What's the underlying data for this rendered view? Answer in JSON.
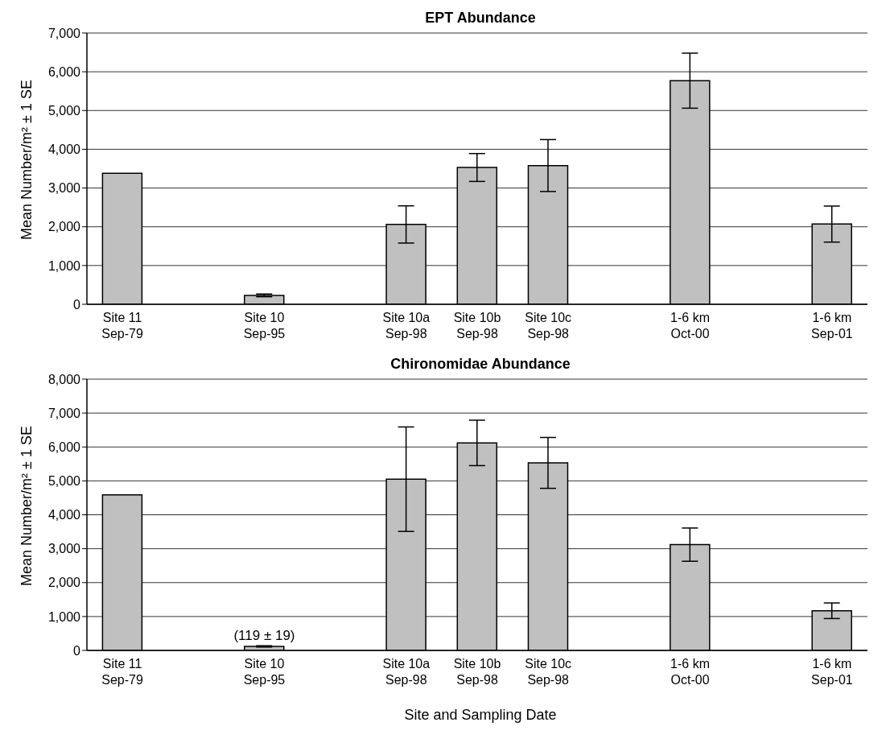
{
  "chart_data": [
    {
      "type": "bar",
      "title": "EPT Abundance",
      "ylabel": "Mean Number/m² ± 1 SE",
      "categories": [
        "Site 11\nSep-79",
        null,
        "Site 10\nSep-95",
        null,
        "Site 10a\nSep-98",
        "Site 10b\nSep-98",
        "Site 10c\nSep-98",
        null,
        "1-6 km\nOct-00",
        null,
        "1-6 km\nSep-01"
      ],
      "values": [
        3380,
        null,
        230,
        null,
        2060,
        3530,
        3580,
        null,
        5770,
        null,
        2070
      ],
      "errors": [
        null,
        null,
        35,
        null,
        480,
        360,
        670,
        null,
        710,
        null,
        465
      ],
      "color": "#c0c0c0",
      "ylim": [
        0,
        7000
      ],
      "yticks": [
        {
          "value": 0,
          "label": "0"
        },
        {
          "value": 1000,
          "label": "1,000"
        },
        {
          "value": 2000,
          "label": "2,000"
        },
        {
          "value": 3000,
          "label": "3,000"
        },
        {
          "value": 4000,
          "label": "4,000"
        },
        {
          "value": 5000,
          "label": "5,000"
        },
        {
          "value": 6000,
          "label": "6,000"
        },
        {
          "value": 7000,
          "label": "7,000"
        }
      ],
      "grid": "y"
    },
    {
      "type": "bar",
      "title": "Chironomidae Abundance",
      "ylabel": "Mean Number/m² ± 1 SE",
      "xlabel": "Site and Sampling Date",
      "categories": [
        "Site 11\nSep-79",
        null,
        "Site 10\nSep-95",
        null,
        "Site 10a\nSep-98",
        "Site 10b\nSep-98",
        "Site 10c\nSep-98",
        null,
        "1-6 km\nOct-00",
        null,
        "1-6 km\nSep-01"
      ],
      "values": [
        4590,
        null,
        119,
        null,
        5050,
        6120,
        5530,
        null,
        3120,
        null,
        1170
      ],
      "errors": [
        null,
        null,
        19,
        null,
        1540,
        670,
        750,
        null,
        490,
        null,
        230
      ],
      "color": "#c0c0c0",
      "ylim": [
        0,
        8000
      ],
      "yticks": [
        {
          "value": 0,
          "label": "0"
        },
        {
          "value": 1000,
          "label": "1,000"
        },
        {
          "value": 2000,
          "label": "2,000"
        },
        {
          "value": 3000,
          "label": "3,000"
        },
        {
          "value": 4000,
          "label": "4,000"
        },
        {
          "value": 5000,
          "label": "5,000"
        },
        {
          "value": 6000,
          "label": "6,000"
        },
        {
          "value": 7000,
          "label": "7,000"
        },
        {
          "value": 8000,
          "label": "8,000"
        }
      ],
      "grid": "y",
      "annotations": [
        {
          "text": "(119 ± 19)",
          "x": "Site 10\nSep-95",
          "y": 119
        }
      ]
    }
  ]
}
